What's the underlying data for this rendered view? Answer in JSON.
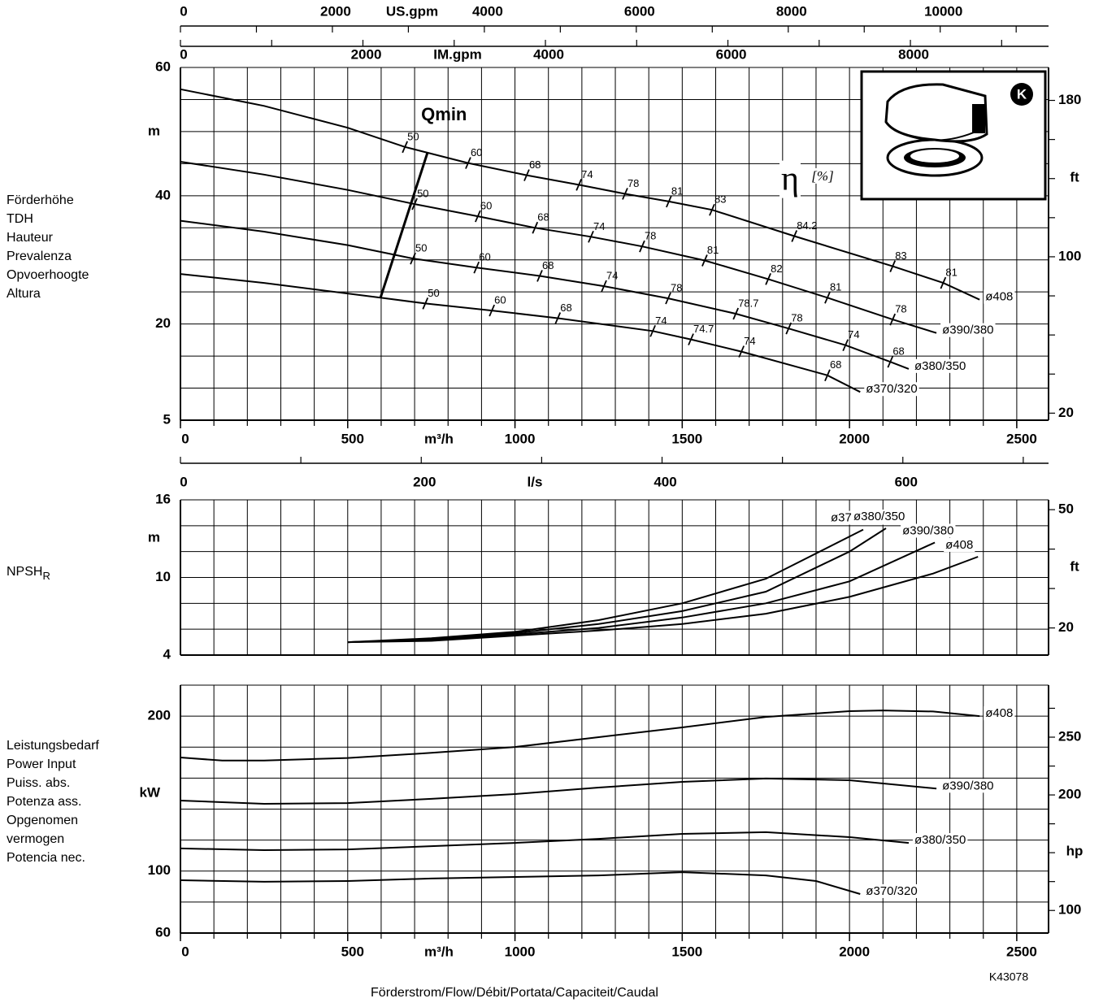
{
  "chart_data": [
    {
      "type": "line",
      "ylabel": [
        "Förderhöhe",
        "TDH",
        "Hauteur",
        "Prevalenza",
        "Opvoerhoogte",
        "Altura"
      ],
      "yunit": "m",
      "y2unit": "ft",
      "xunit": "m³/h",
      "xlim": [
        0,
        2595
      ],
      "xticks": [
        0,
        500,
        1000,
        1500,
        2000,
        2500
      ],
      "xminor": [
        0,
        100,
        200,
        300,
        400,
        500,
        600,
        700,
        800,
        900,
        1000,
        1100,
        1200,
        1300,
        1400,
        1500,
        1600,
        1700,
        1800,
        1900,
        2000,
        2100,
        2200,
        2300,
        2400,
        2500
      ],
      "ylim": [
        5,
        60
      ],
      "yticks": [
        5,
        20,
        40,
        60
      ],
      "yminor": [
        5,
        10,
        15,
        20,
        25,
        30,
        35,
        40,
        45,
        50,
        55,
        60
      ],
      "y2lim": [
        16.4,
        196.85
      ],
      "y2ticks": [
        20,
        100,
        180
      ],
      "y2minor": [
        20,
        40,
        60,
        80,
        100,
        120,
        140,
        160,
        180
      ],
      "top_axes": [
        {
          "label": "US.gpm",
          "xlim": [
            0,
            11426
          ],
          "xticks": [
            0,
            2000,
            4000,
            6000,
            8000,
            10000
          ],
          "xminor": [
            0,
            1000,
            2000,
            3000,
            4000,
            5000,
            6000,
            7000,
            8000,
            9000,
            10000,
            11000
          ]
        },
        {
          "label": "IM.gpm",
          "xlim": [
            0,
            9514
          ],
          "xticks": [
            0,
            2000,
            4000,
            6000,
            8000
          ],
          "xminor": [
            0,
            1000,
            2000,
            3000,
            4000,
            5000,
            6000,
            7000,
            8000,
            9000
          ]
        }
      ],
      "qmin": {
        "label": "Qmin",
        "q": [
          598,
          739
        ],
        "head": [
          24.1,
          46.8
        ]
      },
      "eta_symbol": "η",
      "eta_unit": "[%]",
      "badge": "K",
      "series": [
        {
          "name": "ø408",
          "color": "#000000",
          "x": [
            0,
            250,
            500,
            671,
            860,
            1035,
            1191,
            1329,
            1460,
            1589,
            1835,
            2129,
            2280,
            2389
          ],
          "values": [
            56.6,
            54.0,
            50.6,
            47.6,
            45.1,
            43.2,
            41.7,
            40.3,
            39.1,
            37.8,
            33.7,
            29.0,
            26.4,
            23.8
          ],
          "efficiency": [
            {
              "eta": 50,
              "q": 671,
              "head": 47.6
            },
            {
              "eta": 60,
              "q": 860,
              "head": 45.1
            },
            {
              "eta": 68,
              "q": 1035,
              "head": 43.2
            },
            {
              "eta": 74,
              "q": 1191,
              "head": 41.7
            },
            {
              "eta": 78,
              "q": 1329,
              "head": 40.3
            },
            {
              "eta": 81,
              "q": 1460,
              "head": 39.1
            },
            {
              "eta": 83,
              "q": 1589,
              "head": 37.8
            },
            {
              "eta": 84.2,
              "q": 1835,
              "head": 33.7
            },
            {
              "eta": 83,
              "q": 2129,
              "head": 29.0
            },
            {
              "eta": 81,
              "q": 2280,
              "head": 26.4
            }
          ]
        },
        {
          "name": "ø390/380",
          "color": "#000000",
          "x": [
            0,
            250,
            500,
            700,
            889,
            1060,
            1227,
            1380,
            1567,
            1757,
            1934,
            2129,
            2260
          ],
          "values": [
            45.3,
            43.3,
            40.9,
            38.7,
            36.8,
            35.0,
            33.6,
            32.1,
            29.9,
            27.0,
            24.1,
            20.7,
            18.6
          ],
          "efficiency": [
            {
              "eta": 50,
              "q": 700,
              "head": 38.7
            },
            {
              "eta": 60,
              "q": 889,
              "head": 36.8
            },
            {
              "eta": 68,
              "q": 1060,
              "head": 35.0
            },
            {
              "eta": 74,
              "q": 1227,
              "head": 33.6
            },
            {
              "eta": 78,
              "q": 1380,
              "head": 32.1
            },
            {
              "eta": 81,
              "q": 1567,
              "head": 29.9
            },
            {
              "eta": 82,
              "q": 1757,
              "head": 27.0
            },
            {
              "eta": 81,
              "q": 1934,
              "head": 24.1
            },
            {
              "eta": 78,
              "q": 2129,
              "head": 20.7
            }
          ]
        },
        {
          "name": "ø380/350",
          "color": "#000000",
          "x": [
            0,
            250,
            500,
            695,
            885,
            1074,
            1266,
            1458,
            1660,
            1818,
            1988,
            2122,
            2177
          ],
          "values": [
            36.1,
            34.4,
            32.3,
            30.2,
            28.8,
            27.5,
            25.9,
            24.0,
            21.6,
            19.3,
            16.7,
            14.1,
            13.0
          ],
          "efficiency": [
            {
              "eta": 50,
              "q": 695,
              "head": 30.2
            },
            {
              "eta": 60,
              "q": 885,
              "head": 28.8
            },
            {
              "eta": 68,
              "q": 1074,
              "head": 27.5
            },
            {
              "eta": 74,
              "q": 1266,
              "head": 25.9
            },
            {
              "eta": 78,
              "q": 1458,
              "head": 24.0
            },
            {
              "eta": 78.7,
              "q": 1660,
              "head": 21.6
            },
            {
              "eta": 78,
              "q": 1818,
              "head": 19.3
            },
            {
              "eta": 74,
              "q": 1988,
              "head": 16.7
            },
            {
              "eta": 68,
              "q": 2122,
              "head": 14.1
            }
          ]
        },
        {
          "name": "ø370/320",
          "color": "#000000",
          "x": [
            0,
            250,
            598,
            732,
            931,
            1128,
            1412,
            1526,
            1677,
            1934,
            2032
          ],
          "values": [
            27.8,
            26.4,
            24.1,
            23.2,
            22.1,
            20.9,
            18.9,
            17.6,
            15.7,
            12.0,
            9.4
          ],
          "efficiency": [
            {
              "eta": 50,
              "q": 732,
              "head": 23.2
            },
            {
              "eta": 60,
              "q": 931,
              "head": 22.1
            },
            {
              "eta": 68,
              "q": 1128,
              "head": 20.9
            },
            {
              "eta": 74,
              "q": 1412,
              "head": 18.9
            },
            {
              "eta": 74.7,
              "q": 1526,
              "head": 17.6
            },
            {
              "eta": 74,
              "q": 1677,
              "head": 15.7
            },
            {
              "eta": 68,
              "q": 1934,
              "head": 12.0
            }
          ]
        }
      ]
    },
    {
      "type": "line",
      "ylabel": [
        "NPSH"
      ],
      "ylabel_sub": "R",
      "yunit": "m",
      "y2unit": "ft",
      "xlim": [
        0,
        2595
      ],
      "xminor": [
        0,
        100,
        200,
        300,
        400,
        500,
        600,
        700,
        800,
        900,
        1000,
        1100,
        1200,
        1300,
        1400,
        1500,
        1600,
        1700,
        1800,
        1900,
        2000,
        2100,
        2200,
        2300,
        2400,
        2500
      ],
      "ylim": [
        4,
        16
      ],
      "yticks": [
        4,
        10,
        16
      ],
      "yminor": [
        4,
        6,
        8,
        10,
        12,
        14,
        16
      ],
      "y2lim": [
        13.12,
        52.49
      ],
      "y2ticks": [
        20,
        50
      ],
      "y2minor": [
        20,
        30,
        40,
        50
      ],
      "top_axes": [
        {
          "label": "l/s",
          "xlim": [
            0,
            721
          ],
          "xticks": [
            0,
            200,
            400,
            600
          ],
          "xminor": [
            0,
            100,
            200,
            300,
            400,
            500,
            600,
            700
          ]
        }
      ],
      "series": [
        {
          "name": "ø370/320",
          "color": "#000000",
          "x": [
            500,
            750,
            1000,
            1250,
            1500,
            1750,
            2041
          ],
          "values": [
            5.0,
            5.3,
            5.8,
            6.7,
            8.0,
            9.9,
            13.7
          ]
        },
        {
          "name": "ø380/350",
          "color": "#000000",
          "x": [
            500,
            750,
            1000,
            1250,
            1500,
            1750,
            2000,
            2109
          ],
          "values": [
            5.0,
            5.2,
            5.7,
            6.4,
            7.4,
            8.9,
            12.0,
            13.8
          ]
        },
        {
          "name": "ø390/380",
          "color": "#000000",
          "x": [
            500,
            750,
            1000,
            1250,
            1500,
            1750,
            2000,
            2255
          ],
          "values": [
            5.0,
            5.2,
            5.6,
            6.1,
            6.9,
            8.0,
            9.7,
            12.7
          ]
        },
        {
          "name": "ø408",
          "color": "#000000",
          "x": [
            500,
            750,
            1000,
            1250,
            1500,
            1750,
            2000,
            2250,
            2384
          ],
          "values": [
            5.0,
            5.1,
            5.5,
            5.9,
            6.4,
            7.2,
            8.5,
            10.3,
            11.6
          ]
        }
      ]
    },
    {
      "type": "line",
      "ylabel": [
        "Leistungsbedarf",
        "Power Input",
        "Puiss. abs.",
        "Potenza ass.",
        "Opgenomen",
        "vermogen",
        "Potencia nec."
      ],
      "yunit": "kW",
      "y2unit": "hp",
      "xunit": "m³/h",
      "xlabel": "Förderstrom/Flow/Débit/Portata/Capaciteit/Caudal",
      "code": "K43078",
      "xlim": [
        0,
        2595
      ],
      "xticks": [
        0,
        500,
        1000,
        1500,
        2000,
        2500
      ],
      "xminor": [
        0,
        100,
        200,
        300,
        400,
        500,
        600,
        700,
        800,
        900,
        1000,
        1100,
        1200,
        1300,
        1400,
        1500,
        1600,
        1700,
        1800,
        1900,
        2000,
        2100,
        2200,
        2300,
        2400,
        2500
      ],
      "ylim": [
        60,
        220
      ],
      "yticks": [
        60,
        100,
        200
      ],
      "yminor": [
        60,
        80,
        100,
        120,
        140,
        160,
        180,
        200,
        220
      ],
      "y2lim": [
        80.46,
        295.02
      ],
      "y2ticks": [
        100,
        200,
        250
      ],
      "y2minor": [
        100,
        125,
        150,
        175,
        200,
        225,
        250,
        275
      ],
      "series": [
        {
          "name": "ø408",
          "color": "#000000",
          "x": [
            0,
            125,
            250,
            500,
            750,
            1000,
            1250,
            1500,
            1750,
            2000,
            2100,
            2250,
            2389
          ],
          "values": [
            173.3,
            171.3,
            171.3,
            173.0,
            176.3,
            180.1,
            186.4,
            192.7,
            199.5,
            203.2,
            203.7,
            203.0,
            200.0
          ]
        },
        {
          "name": "ø390/380",
          "color": "#000000",
          "x": [
            0,
            250,
            500,
            750,
            1000,
            1250,
            1500,
            1750,
            2000,
            2260
          ],
          "values": [
            145.5,
            143.4,
            143.9,
            146.6,
            149.7,
            153.9,
            157.6,
            159.7,
            158.6,
            153.2
          ]
        },
        {
          "name": "ø380/350",
          "color": "#000000",
          "x": [
            0,
            250,
            500,
            750,
            1000,
            1250,
            1500,
            1750,
            2000,
            2177
          ],
          "values": [
            114.6,
            113.5,
            114.0,
            116.1,
            118.2,
            120.8,
            124.0,
            125.1,
            121.9,
            118.2
          ]
        },
        {
          "name": "ø370/320",
          "color": "#000000",
          "x": [
            0,
            250,
            500,
            750,
            1000,
            1250,
            1500,
            1750,
            1900,
            2032
          ],
          "values": [
            94.1,
            93.1,
            93.6,
            95.2,
            96.2,
            97.2,
            99.3,
            97.2,
            93.6,
            85.2
          ]
        }
      ]
    }
  ]
}
